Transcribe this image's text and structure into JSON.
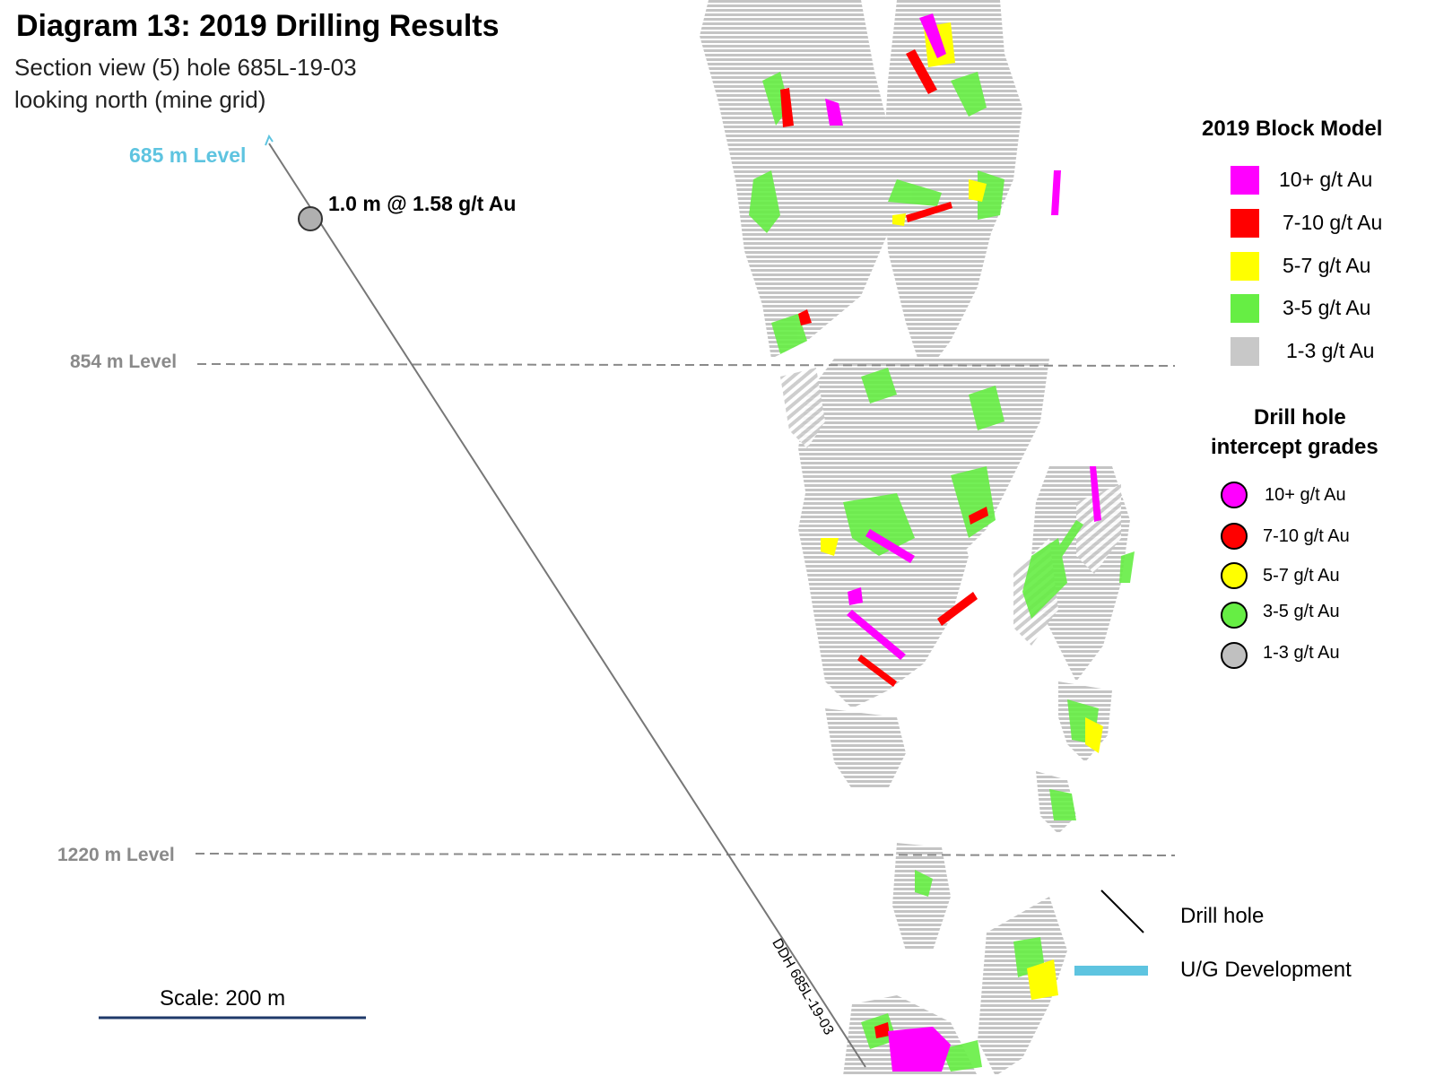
{
  "title": "Diagram 13: 2019 Drilling Results",
  "subtitle_line1": "Section view (5) hole 685L-19-03",
  "subtitle_line2": "looking north (mine grid)",
  "levels": {
    "top": "685 m Level",
    "mid": "854 m Level",
    "low": "1220 m Level"
  },
  "intercept_label": "1.0 m @ 1.58 g/t Au",
  "block_model": {
    "title": "2019 Block Model",
    "items": [
      {
        "label": "10+ g/t Au",
        "color": "#ff00ff"
      },
      {
        "label": "7-10 g/t Au",
        "color": "#ff0000"
      },
      {
        "label": "5-7 g/t Au",
        "color": "#ffff00"
      },
      {
        "label": "3-5 g/t Au",
        "color": "#66ee44"
      },
      {
        "label": "1-3 g/t Au",
        "color": "#c8c8c8"
      }
    ]
  },
  "drill_hole_grades": {
    "title_line1": "Drill hole",
    "title_line2": "intercept grades",
    "items": [
      {
        "label": "10+ g/t Au",
        "color": "#ff00ff"
      },
      {
        "label": "7-10 g/t Au",
        "color": "#ff0000"
      },
      {
        "label": "5-7 g/t Au",
        "color": "#ffff00"
      },
      {
        "label": "3-5 g/t Au",
        "color": "#66ee44"
      },
      {
        "label": "1-3 g/t Au",
        "color": "#c0c0c0"
      }
    ]
  },
  "other_legend": {
    "drill_hole": "Drill hole",
    "ug_development": "U/G Development",
    "ug_color": "#5ec4e0"
  },
  "scale_label": "Scale: 200 m",
  "hole_label": "DDH 685L-19-03"
}
